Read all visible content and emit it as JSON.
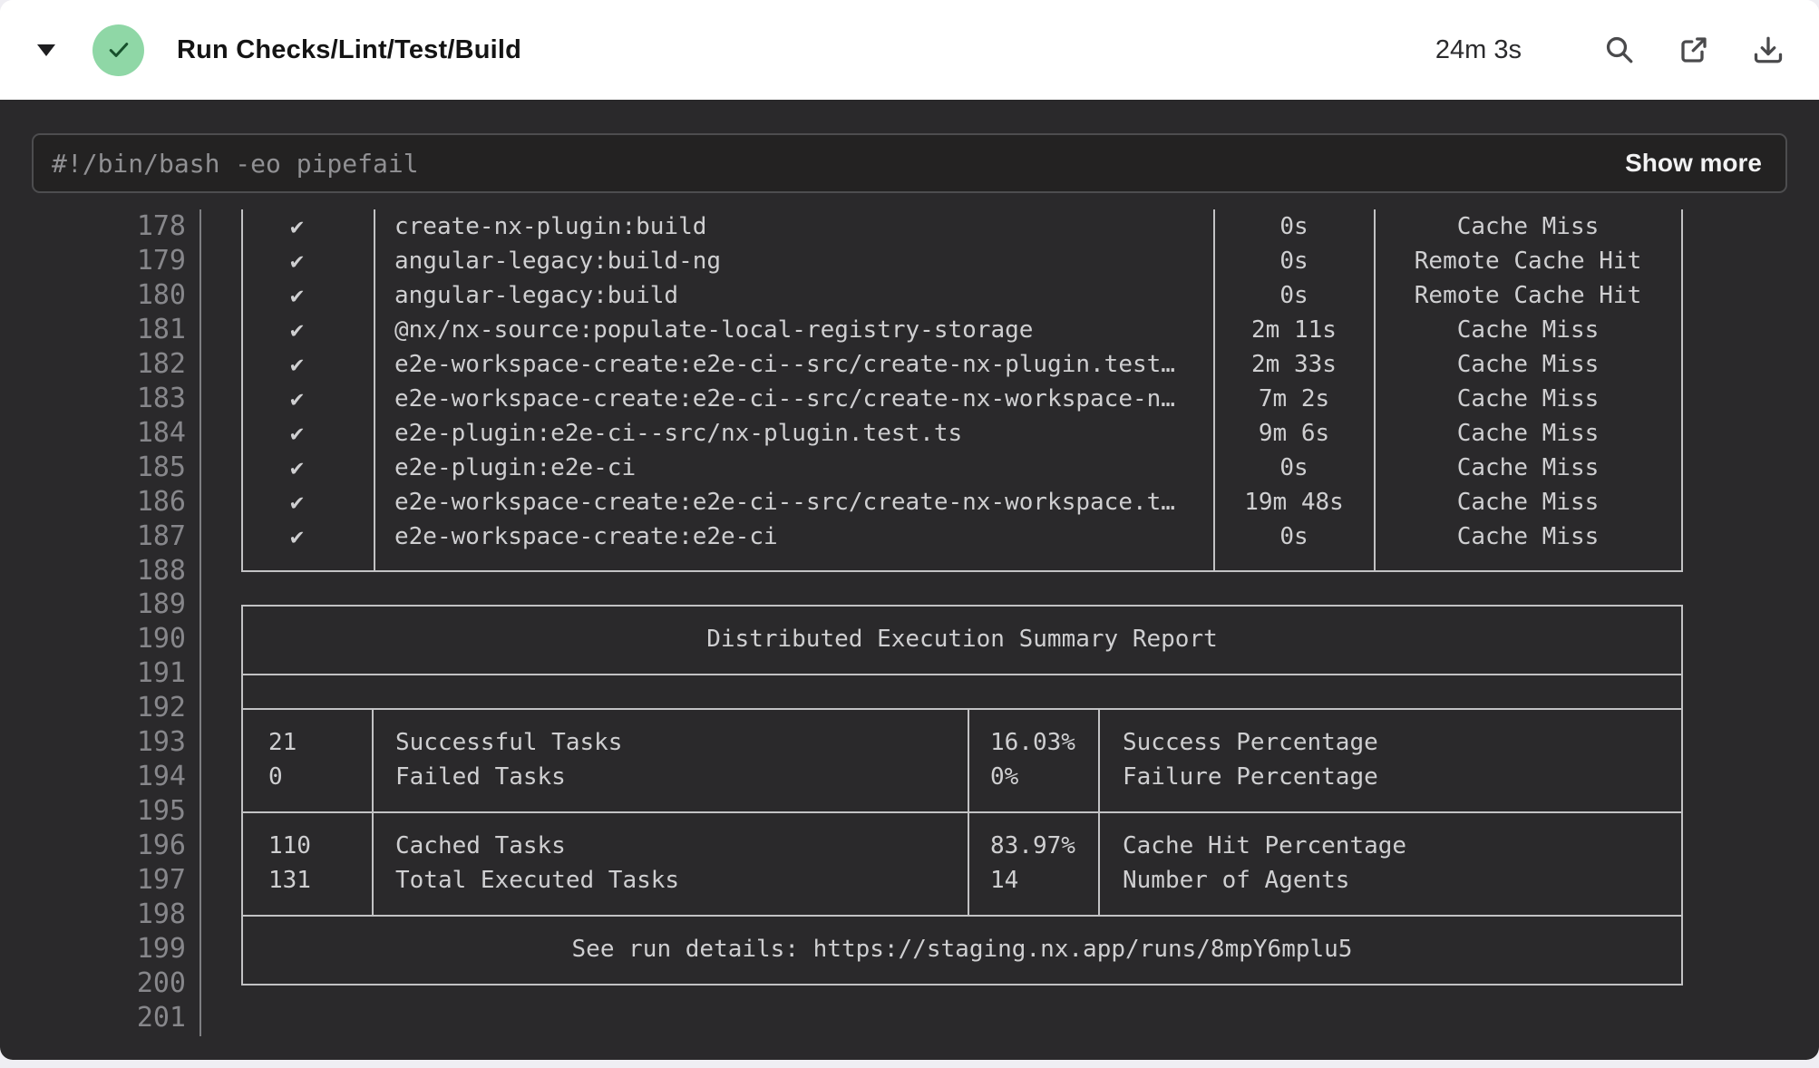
{
  "header": {
    "title": "Run Checks/Lint/Test/Build",
    "duration": "24m 3s",
    "status": "success",
    "status_color": "#8fd7a6",
    "icons": {
      "collapse": "caret-down-icon",
      "status": "check-icon",
      "search": "search-icon",
      "open": "open-external-icon",
      "download": "download-icon"
    }
  },
  "command_bar": {
    "command": "#!/bin/bash -eo pipefail",
    "show_more_label": "Show more"
  },
  "log": {
    "line_numbers": [
      "178",
      "179",
      "180",
      "181",
      "182",
      "183",
      "184",
      "185",
      "186",
      "187",
      "188",
      "189",
      "190",
      "191",
      "192",
      "193",
      "194",
      "195",
      "196",
      "197",
      "198",
      "199",
      "200",
      "201"
    ],
    "tasks": [
      {
        "status": "✔",
        "name": "create-nx-plugin:build",
        "duration": "0s",
        "cache": "Cache Miss"
      },
      {
        "status": "✔",
        "name": "angular-legacy:build-ng",
        "duration": "0s",
        "cache": "Remote Cache Hit"
      },
      {
        "status": "✔",
        "name": "angular-legacy:build",
        "duration": "0s",
        "cache": "Remote Cache Hit"
      },
      {
        "status": "✔",
        "name": "@nx/nx-source:populate-local-registry-storage",
        "duration": "2m 11s",
        "cache": "Cache Miss"
      },
      {
        "status": "✔",
        "name": "e2e-workspace-create:e2e-ci--src/create-nx-plugin.test…",
        "duration": "2m 33s",
        "cache": "Cache Miss"
      },
      {
        "status": "✔",
        "name": "e2e-workspace-create:e2e-ci--src/create-nx-workspace-n…",
        "duration": "7m 2s",
        "cache": "Cache Miss"
      },
      {
        "status": "✔",
        "name": "e2e-plugin:e2e-ci--src/nx-plugin.test.ts",
        "duration": "9m 6s",
        "cache": "Cache Miss"
      },
      {
        "status": "✔",
        "name": "e2e-plugin:e2e-ci",
        "duration": "0s",
        "cache": "Cache Miss"
      },
      {
        "status": "✔",
        "name": "e2e-workspace-create:e2e-ci--src/create-nx-workspace.t…",
        "duration": "19m 48s",
        "cache": "Cache Miss"
      },
      {
        "status": "✔",
        "name": "e2e-workspace-create:e2e-ci",
        "duration": "0s",
        "cache": "Cache Miss"
      }
    ],
    "summary": {
      "title": "Distributed Execution Summary Report",
      "rows": [
        {
          "value": "21",
          "label": "Successful Tasks",
          "pct": "16.03%",
          "pct_label": "Success Percentage"
        },
        {
          "value": "0",
          "label": "Failed Tasks",
          "pct": "0%",
          "pct_label": "Failure Percentage"
        },
        {
          "value": "110",
          "label": "Cached Tasks",
          "pct": "83.97%",
          "pct_label": "Cache Hit Percentage"
        },
        {
          "value": "131",
          "label": "Total Executed Tasks",
          "pct": "14",
          "pct_label": "Number of Agents"
        }
      ],
      "footer": "See run details: https://staging.nx.app/runs/8mpY6mplu5"
    }
  }
}
